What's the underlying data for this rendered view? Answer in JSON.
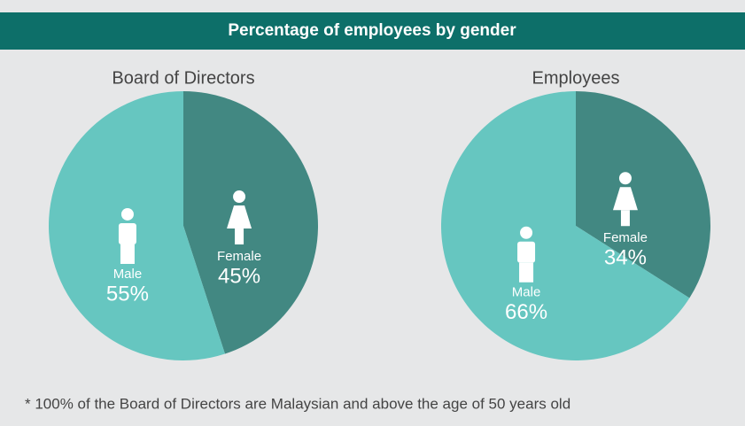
{
  "title": "Percentage of employees by gender",
  "note": "*  100% of the Board of Directors are Malaysian and above the age of 50 years old",
  "chart_data": [
    {
      "type": "pie",
      "title": "Board of Directors",
      "categories": [
        "Male",
        "Female"
      ],
      "values": [
        55,
        45
      ],
      "value_labels": [
        "55%",
        "45%"
      ],
      "colors": [
        "#66c6c0",
        "#428882"
      ]
    },
    {
      "type": "pie",
      "title": "Employees",
      "categories": [
        "Male",
        "Female"
      ],
      "values": [
        66,
        34
      ],
      "value_labels": [
        "66%",
        "34%"
      ],
      "colors": [
        "#66c6c0",
        "#428882"
      ]
    }
  ]
}
